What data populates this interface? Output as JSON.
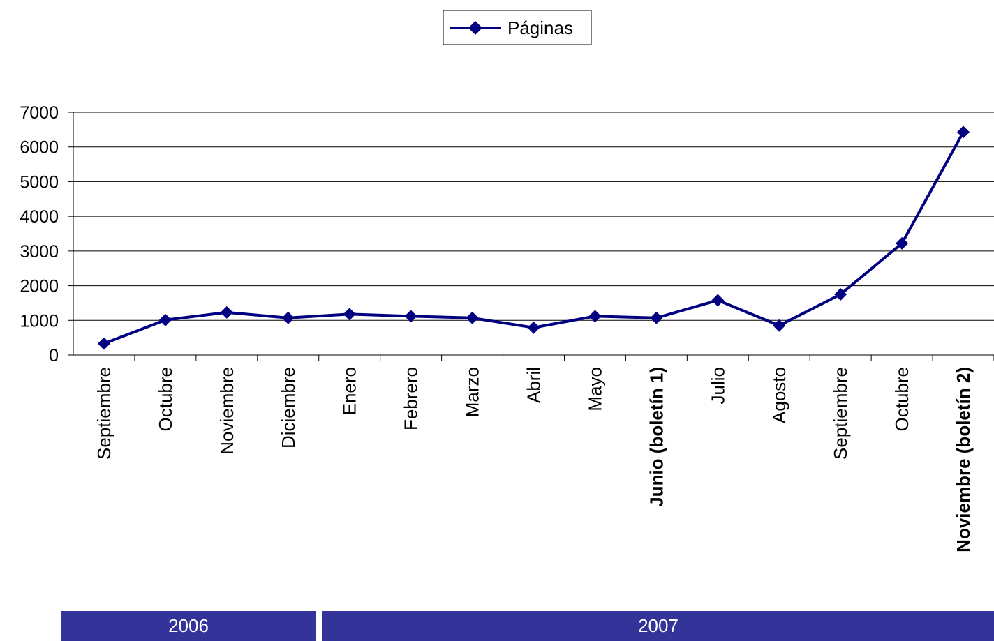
{
  "chart_data": {
    "type": "line",
    "title": "",
    "xlabel": "",
    "ylabel": "",
    "categories": [
      "Septiembre",
      "Octubre",
      "Noviembre",
      "Diciembre",
      "Enero",
      "Febrero",
      "Marzo",
      "Abril",
      "Mayo",
      "Junio (boletín 1)",
      "Julio",
      "Agosto",
      "Septiembre",
      "Octubre",
      "Noviembre (boletín 2)"
    ],
    "bold_categories": [
      "Junio (boletín 1)",
      "Noviembre (boletín 2)"
    ],
    "series": [
      {
        "name": "Páginas",
        "color": "#000080",
        "marker": "diamond",
        "values": [
          330,
          1010,
          1230,
          1070,
          1180,
          1120,
          1070,
          790,
          1120,
          1070,
          1580,
          850,
          1750,
          3220,
          6430
        ]
      }
    ],
    "ylim": [
      0,
      7000
    ],
    "yticks": [
      0,
      1000,
      2000,
      3000,
      4000,
      5000,
      6000,
      7000
    ],
    "grid": "horizontal",
    "legend_position": "top-center"
  },
  "year_bands": [
    {
      "label": "2006"
    },
    {
      "label": "2007"
    }
  ],
  "colors": {
    "series_line": "#000080",
    "year_band_bg": "#333399",
    "year_band_text": "#ffffff"
  }
}
